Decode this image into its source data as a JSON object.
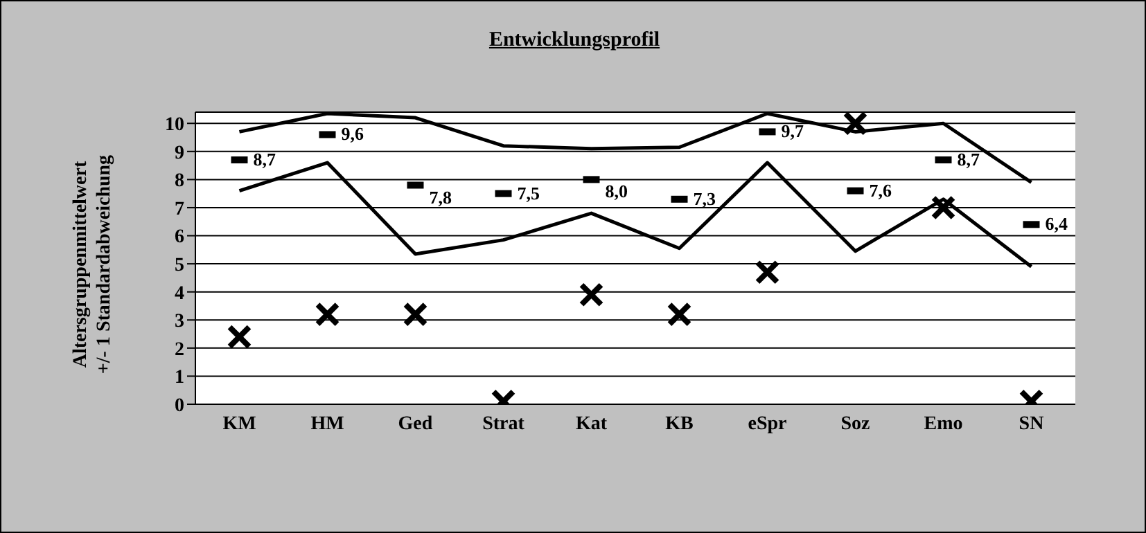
{
  "chart_data": {
    "type": "line",
    "title": "Entwicklungsprofil",
    "ylabel": "Altersgruppenmittelwert\n+/- 1 Standardabweichung",
    "categories": [
      "KM",
      "HM",
      "Ged",
      "Strat",
      "Kat",
      "KB",
      "eSpr",
      "Soz",
      "Emo",
      "SN"
    ],
    "series": [
      {
        "type": "line",
        "color": "#000000",
        "marker": "none",
        "values": [
          9.7,
          10.35,
          10.2,
          9.2,
          9.1,
          9.15,
          10.35,
          9.7,
          10.0,
          7.9
        ]
      },
      {
        "type": "scatter",
        "color": "#000000",
        "values": [
          8.7,
          9.6,
          7.8,
          7.5,
          8.0,
          7.3,
          9.7,
          7.6,
          8.7,
          6.4
        ],
        "value_labels": [
          "8,7",
          "9,6",
          "7,8",
          "7,5",
          "8,0",
          "7,3",
          "9,7",
          "7,6",
          "8,7",
          "6,4"
        ]
      },
      {
        "type": "line",
        "color": "#000000",
        "marker": "none",
        "values": [
          7.6,
          8.6,
          5.35,
          5.85,
          6.8,
          5.55,
          8.6,
          5.45,
          7.3,
          4.9
        ]
      },
      {
        "type": "scatter",
        "color": "#000000",
        "marker": "cross",
        "values": [
          2.4,
          3.2,
          3.2,
          0.1,
          3.9,
          3.2,
          4.7,
          10.0,
          7.0,
          0.1
        ]
      }
    ],
    "ylim": [
      0,
      10.4
    ],
    "yticks": [
      0,
      1,
      2,
      3,
      4,
      5,
      6,
      7,
      8,
      9,
      10
    ],
    "grid": "y"
  }
}
